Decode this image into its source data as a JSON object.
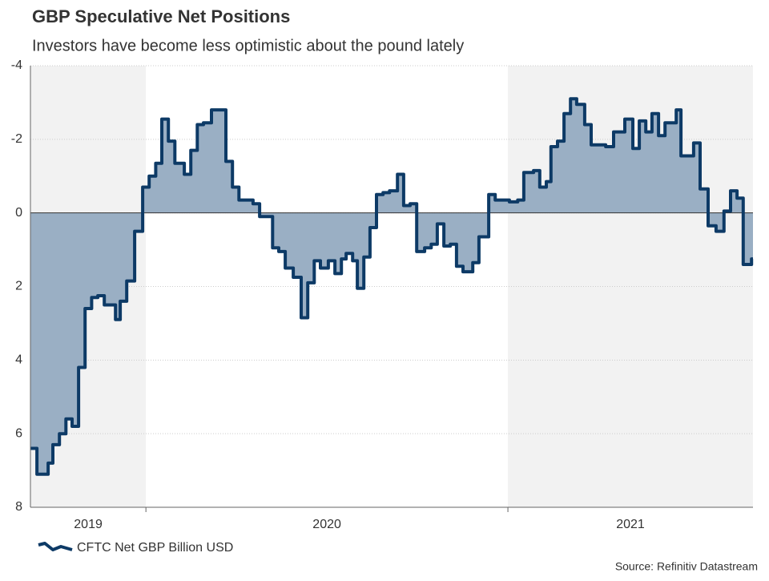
{
  "chart_data": {
    "type": "step-area",
    "title": "GBP Speculative Net Positions",
    "subtitle": "Investors have become less optimistic about the pound lately",
    "source": "Source: Refinitiv Datastream",
    "categories": [
      "2019",
      "2020",
      "2021"
    ],
    "band_colors": [
      "#f2f2f2",
      "#ffffff",
      "#f2f2f2"
    ],
    "xlim": [
      2019.681,
      2021.677
    ],
    "xticks": [
      2020,
      2021
    ],
    "ylim": [
      -4,
      8
    ],
    "y_inverted": true,
    "yticks": [
      -4,
      -2,
      0,
      2,
      4,
      6,
      8
    ],
    "grid": true,
    "legend": "bottom-left",
    "series": [
      {
        "name": "CFTC Net GBP Billion USD",
        "color": "#0d3a66",
        "fill": "#9aafc4",
        "x": [
          2019.681,
          2019.699,
          2019.73,
          2019.743,
          2019.761,
          2019.779,
          2019.796,
          2019.814,
          2019.832,
          2019.85,
          2019.867,
          2019.885,
          2019.916,
          2019.929,
          2019.947,
          2019.969,
          2019.991,
          2020.009,
          2020.027,
          2020.044,
          2020.062,
          2020.08,
          2020.106,
          2020.124,
          2020.142,
          2020.159,
          2020.181,
          2020.221,
          2020.239,
          2020.257,
          2020.296,
          2020.314,
          2020.35,
          2020.367,
          2020.385,
          2020.407,
          2020.429,
          2020.447,
          2020.465,
          2020.482,
          2020.504,
          2020.522,
          2020.54,
          2020.553,
          2020.571,
          2020.584,
          2020.602,
          2020.619,
          2020.637,
          2020.655,
          2020.673,
          2020.695,
          2020.712,
          2020.73,
          2020.748,
          2020.77,
          2020.788,
          2020.805,
          2020.823,
          2020.841,
          2020.858,
          2020.876,
          2020.903,
          2020.92,
          2020.947,
          2020.965,
          2021.004,
          2021.027,
          2021.044,
          2021.071,
          2021.088,
          2021.106,
          2021.119,
          2021.137,
          2021.155,
          2021.173,
          2021.19,
          2021.212,
          2021.23,
          2021.27,
          2021.292,
          2021.323,
          2021.345,
          2021.363,
          2021.381,
          2021.398,
          2021.416,
          2021.434,
          2021.465,
          2021.478,
          2021.513,
          2021.531,
          2021.553,
          2021.575,
          2021.597,
          2021.615,
          2021.633,
          2021.65,
          2021.673
        ],
        "values": [
          6.4,
          7.1,
          6.8,
          6.3,
          6.0,
          5.6,
          5.8,
          4.2,
          2.6,
          2.3,
          2.25,
          2.5,
          2.9,
          2.4,
          1.85,
          0.5,
          -0.7,
          -1.0,
          -1.35,
          -2.55,
          -1.95,
          -1.35,
          -1.05,
          -1.7,
          -2.4,
          -2.45,
          -2.8,
          -1.4,
          -0.7,
          -0.35,
          -0.25,
          0.1,
          0.95,
          1.05,
          1.5,
          1.75,
          2.85,
          1.9,
          1.3,
          1.5,
          1.3,
          1.65,
          1.25,
          1.1,
          1.3,
          2.05,
          1.2,
          0.4,
          -0.5,
          -0.55,
          -0.6,
          -1.05,
          -0.2,
          -0.25,
          1.05,
          0.95,
          0.85,
          0.3,
          0.9,
          0.85,
          1.45,
          1.6,
          1.35,
          0.65,
          -0.5,
          -0.35,
          -0.3,
          -0.35,
          -1.1,
          -1.15,
          -0.7,
          -0.85,
          -1.8,
          -1.95,
          -2.7,
          -3.1,
          -2.95,
          -2.4,
          -1.85,
          -1.8,
          -2.2,
          -2.55,
          -1.75,
          -2.5,
          -2.2,
          -2.7,
          -2.1,
          -2.45,
          -2.8,
          -1.55,
          -1.9,
          -0.65,
          0.35,
          0.5,
          -0.05,
          -0.6,
          -0.4,
          1.4,
          1.25
        ]
      }
    ]
  }
}
